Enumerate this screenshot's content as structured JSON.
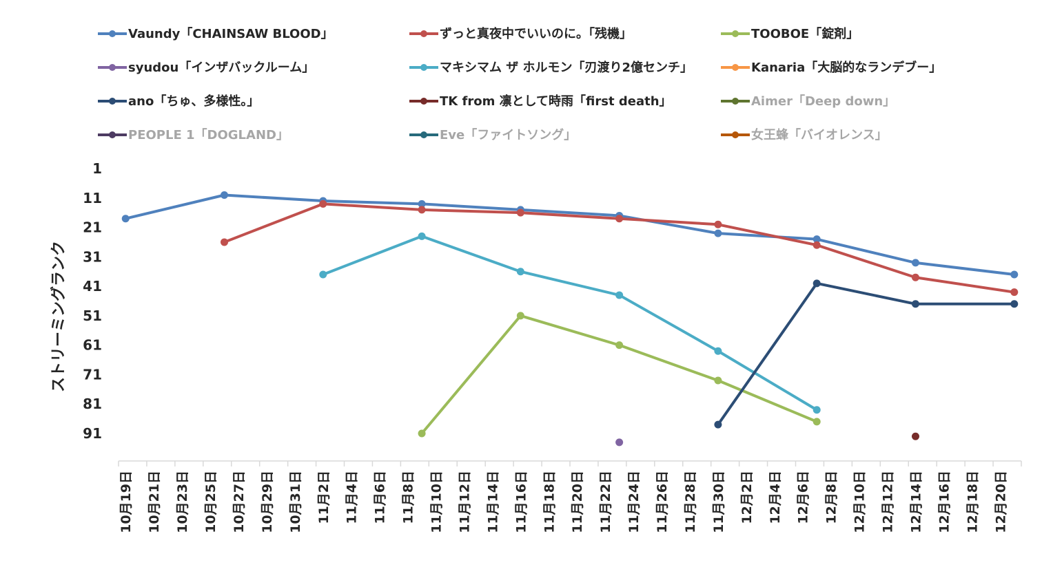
{
  "chart_data": {
    "type": "line",
    "title": "",
    "xlabel": "",
    "ylabel": "ストリーミングランク",
    "y_axis_inverted": true,
    "ylim": [
      1,
      100
    ],
    "yticks": [
      "1",
      "11",
      "21",
      "31",
      "41",
      "51",
      "61",
      "71",
      "81",
      "91"
    ],
    "categories": [
      "10月19日",
      "10月21日",
      "10月23日",
      "10月25日",
      "10月27日",
      "10月29日",
      "10月31日",
      "11月2日",
      "11月4日",
      "11月6日",
      "11月8日",
      "11月10日",
      "11月12日",
      "11月14日",
      "11月16日",
      "11月18日",
      "11月20日",
      "11月22日",
      "11月24日",
      "11月26日",
      "11月28日",
      "11月30日",
      "12月2日",
      "12月4日",
      "12月6日",
      "12月8日",
      "12月10日",
      "12月12日",
      "12月14日",
      "12月16日",
      "12月18日",
      "12月20日"
    ],
    "legend_position": "top",
    "series": [
      {
        "name": "Vaundy「CHAINSAW BLOOD」",
        "color": "#4F81BD",
        "legend_text_color": "#262626",
        "points": [
          {
            "x": "10月19日",
            "y": 18
          },
          {
            "x": "10月26日",
            "y": 10
          },
          {
            "x": "11月2日",
            "y": 12
          },
          {
            "x": "11月9日",
            "y": 13
          },
          {
            "x": "11月16日",
            "y": 15
          },
          {
            "x": "11月23日",
            "y": 17
          },
          {
            "x": "11月30日",
            "y": 23
          },
          {
            "x": "12月7日",
            "y": 25
          },
          {
            "x": "12月14日",
            "y": 33
          },
          {
            "x": "12月21日",
            "y": 37
          }
        ]
      },
      {
        "name": "ずっと真夜中でいいのに。「残機」",
        "color": "#C0504D",
        "legend_text_color": "#262626",
        "points": [
          {
            "x": "10月26日",
            "y": 26
          },
          {
            "x": "11月2日",
            "y": 13
          },
          {
            "x": "11月9日",
            "y": 15
          },
          {
            "x": "11月16日",
            "y": 16
          },
          {
            "x": "11月23日",
            "y": 18
          },
          {
            "x": "11月30日",
            "y": 20
          },
          {
            "x": "12月7日",
            "y": 27
          },
          {
            "x": "12月14日",
            "y": 38
          },
          {
            "x": "12月21日",
            "y": 43
          }
        ]
      },
      {
        "name": "TOOBOE「錠剤」",
        "color": "#9BBB59",
        "legend_text_color": "#262626",
        "points": [
          {
            "x": "11月9日",
            "y": 91
          },
          {
            "x": "11月16日",
            "y": 51
          },
          {
            "x": "11月23日",
            "y": 61
          },
          {
            "x": "11月30日",
            "y": 73
          },
          {
            "x": "12月7日",
            "y": 87
          }
        ]
      },
      {
        "name": "syudou「インザバックルーム」",
        "color": "#8064A2",
        "legend_text_color": "#262626",
        "points": [
          {
            "x": "11月23日",
            "y": 94
          }
        ]
      },
      {
        "name": "マキシマム ザ ホルモン「刃渡り2億センチ」",
        "color": "#4BACC6",
        "legend_text_color": "#262626",
        "points": [
          {
            "x": "11月2日",
            "y": 37
          },
          {
            "x": "11月9日",
            "y": 24
          },
          {
            "x": "11月16日",
            "y": 36
          },
          {
            "x": "11月23日",
            "y": 44
          },
          {
            "x": "11月30日",
            "y": 63
          },
          {
            "x": "12月7日",
            "y": 83
          }
        ]
      },
      {
        "name": "Kanaria「大脳的なランデブー」",
        "color": "#F79646",
        "legend_text_color": "#262626",
        "points": []
      },
      {
        "name": "ano「ちゅ、多様性。」",
        "color": "#2C4D75",
        "legend_text_color": "#262626",
        "points": [
          {
            "x": "11月30日",
            "y": 88
          },
          {
            "x": "12月7日",
            "y": 40
          },
          {
            "x": "12月14日",
            "y": 47
          },
          {
            "x": "12月21日",
            "y": 47
          }
        ]
      },
      {
        "name": "TK from 凛として時雨「first death」",
        "color": "#772C2A",
        "legend_text_color": "#262626",
        "points": [
          {
            "x": "12月14日",
            "y": 92
          }
        ]
      },
      {
        "name": "Aimer「Deep down」",
        "color": "#5F7530",
        "legend_text_color": "#A6A6A6",
        "points": []
      },
      {
        "name": "PEOPLE 1「DOGLAND」",
        "color": "#4D3B62",
        "legend_text_color": "#A6A6A6",
        "points": []
      },
      {
        "name": "Eve「ファイトソング」",
        "color": "#276A7C",
        "legend_text_color": "#A6A6A6",
        "points": []
      },
      {
        "name": "女王蜂「バイオレンス」",
        "color": "#B65708",
        "legend_text_color": "#A6A6A6",
        "points": []
      }
    ]
  }
}
